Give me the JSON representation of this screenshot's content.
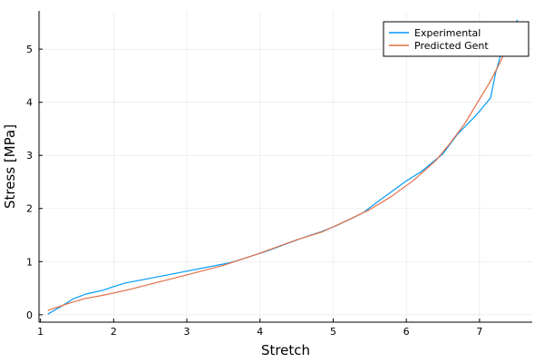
{
  "chart_data": {
    "type": "line",
    "title": "",
    "xlabel": "Stretch",
    "ylabel": "Stress [MPa]",
    "xlim": [
      0.98,
      7.72
    ],
    "ylim": [
      -0.14,
      5.72
    ],
    "xticks": [
      1,
      2,
      3,
      4,
      5,
      6,
      7
    ],
    "yticks": [
      0,
      1,
      2,
      3,
      4,
      5
    ],
    "grid": true,
    "legend_position": "top-right",
    "series": [
      {
        "name": "Experimental",
        "color": "#009afa",
        "x": [
          1.1,
          1.2,
          1.3,
          1.45,
          1.62,
          1.85,
          2.0,
          2.17,
          2.4,
          3.0,
          3.6,
          4.1,
          4.55,
          4.85,
          5.05,
          5.4,
          5.65,
          5.85,
          6.0,
          6.2,
          6.5,
          6.7,
          6.95,
          7.15,
          7.22,
          7.3,
          7.38,
          7.45,
          7.52
        ],
        "y": [
          0.01,
          0.09,
          0.17,
          0.3,
          0.39,
          0.46,
          0.53,
          0.6,
          0.66,
          0.82,
          0.98,
          1.2,
          1.43,
          1.57,
          1.68,
          1.91,
          2.17,
          2.37,
          2.52,
          2.69,
          3.03,
          3.4,
          3.75,
          4.08,
          4.55,
          4.95,
          5.25,
          5.42,
          5.55
        ]
      },
      {
        "name": "Predicted Gent",
        "color": "#e36f47",
        "x": [
          1.1,
          1.25,
          1.4,
          1.6,
          1.9,
          2.2,
          2.6,
          3.0,
          3.5,
          4.0,
          4.5,
          4.85,
          5.2,
          5.5,
          5.8,
          6.1,
          6.4,
          6.6,
          6.8,
          7.0,
          7.15,
          7.3,
          7.4,
          7.48
        ],
        "y": [
          0.08,
          0.15,
          0.22,
          0.3,
          0.38,
          0.47,
          0.61,
          0.75,
          0.93,
          1.16,
          1.41,
          1.56,
          1.78,
          1.98,
          2.23,
          2.53,
          2.9,
          3.23,
          3.6,
          4.06,
          4.4,
          4.8,
          5.13,
          5.42
        ]
      }
    ]
  }
}
